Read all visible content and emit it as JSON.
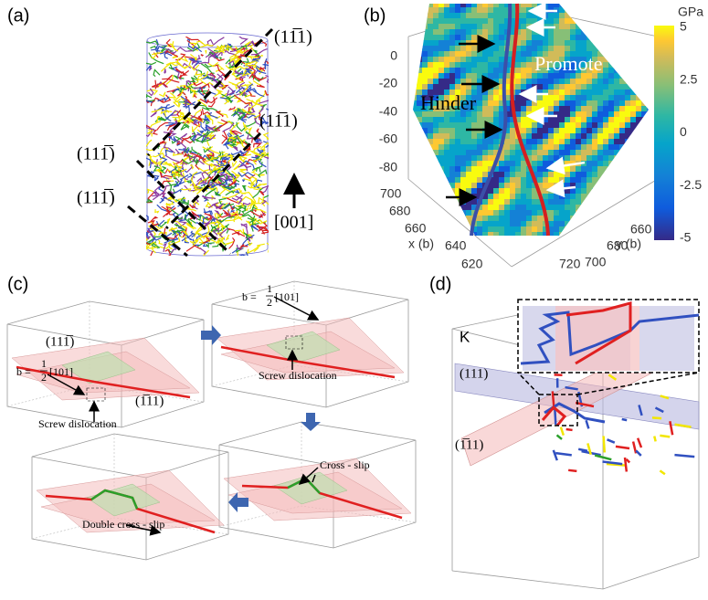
{
  "panels": [
    {
      "label": "(a)",
      "annotations": [
        "(11̅1)",
        "(11̅1)",
        "(111̅)",
        "(111̅)",
        "[001]"
      ]
    },
    {
      "label": "(b)",
      "colorbar": {
        "unit": "GPa",
        "ticks": [
          "5",
          "2.5",
          "0",
          "-2.5",
          "-5"
        ]
      },
      "z_ticks": [
        "0",
        "-20",
        "-40",
        "-60",
        "-80"
      ],
      "x_axis": {
        "label": "x (b)",
        "ticks": [
          "700",
          "680",
          "660",
          "640",
          "620"
        ]
      },
      "y_axis": {
        "label": "y (b)",
        "ticks": [
          "660",
          "680",
          "700",
          "720"
        ]
      },
      "annotations": [
        "Promote",
        "Hinder"
      ]
    },
    {
      "label": "(c)",
      "annotations": [
        "(111̅)",
        "(1̅11)",
        "Screw dislocation",
        "Screw dislocation",
        "Cross - slip",
        "Double cross - slip"
      ],
      "burgers_1": {
        "prefix": "b =",
        "numerator": "1",
        "denominator": "2",
        "direction": "[101]"
      },
      "burgers_2": {
        "prefix": "b =",
        "numerator": "1",
        "denominator": "2",
        "direction": "[101]"
      }
    },
    {
      "label": "(d)",
      "annotations": [
        "K",
        "(111)",
        "(1̅11)"
      ]
    }
  ]
}
